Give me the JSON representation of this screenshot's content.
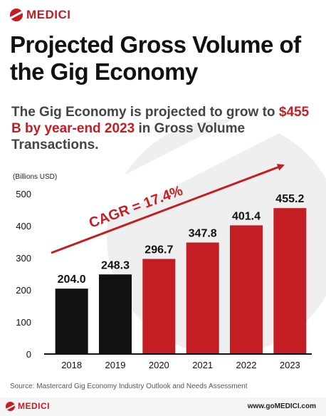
{
  "brand": {
    "name": "MEDICI",
    "name_footer": "MEDICI",
    "website": "www.goMEDICI.com",
    "color": "#c41e24"
  },
  "title": "Projected Gross Volume of the Gig Economy",
  "subtitle": {
    "part1": "The Gig Economy is projected to grow to ",
    "highlight": "$455 B by year-end 2023",
    "part2": " in Gross Volume Transactions."
  },
  "source": "Source: Mastercard Gig Economy Industry Outlook and Needs Assessment",
  "chart_data": {
    "type": "bar",
    "ylabel": "(Billions USD)",
    "xlabel": "",
    "categories": [
      "2018",
      "2019",
      "2020",
      "2021",
      "2022",
      "2023"
    ],
    "values": [
      204.0,
      248.3,
      296.7,
      347.8,
      401.4,
      455.2
    ],
    "value_labels": [
      "204.0",
      "248.3",
      "296.7",
      "347.8",
      "401.4",
      "455.2"
    ],
    "bar_colors": [
      "#111111",
      "#111111",
      "#c41e24",
      "#c41e24",
      "#c41e24",
      "#c41e24"
    ],
    "ylim": [
      0,
      500
    ],
    "yticks": [
      0,
      100,
      200,
      300,
      400,
      500
    ],
    "grid": false,
    "annotation": {
      "text": "CAGR = 17.4%",
      "color": "#c41e24"
    }
  }
}
